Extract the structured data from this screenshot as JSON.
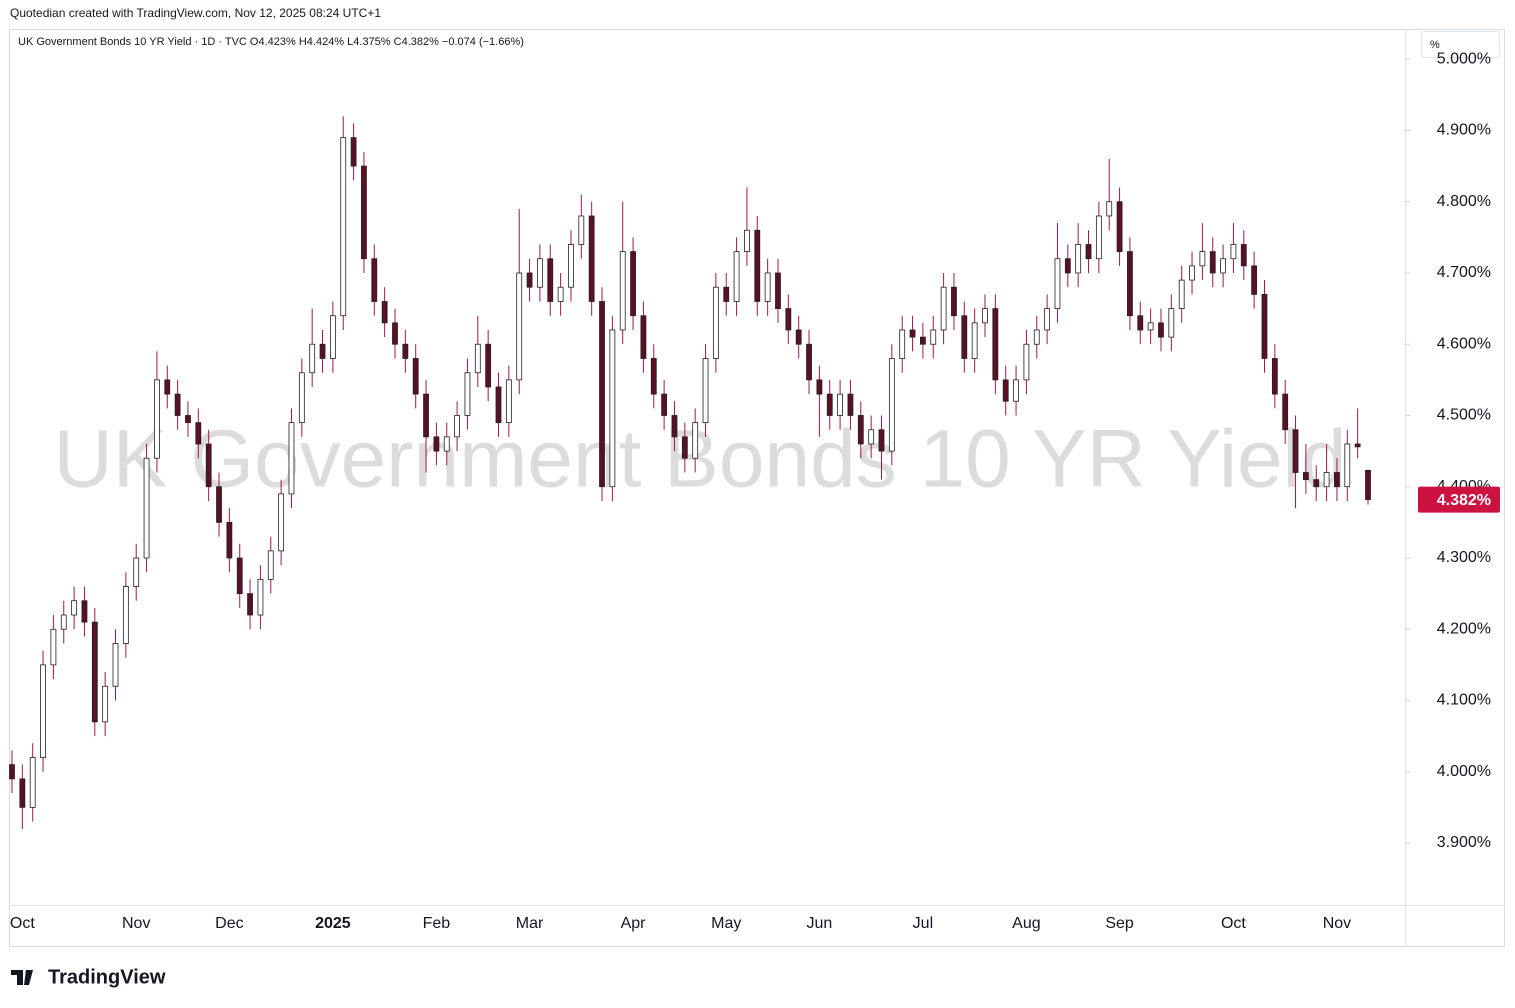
{
  "header": {
    "credit": "Quotedian created with TradingView.com, Nov 12, 2025 08:24 UTC+1",
    "scale_button": "%"
  },
  "footer": {
    "brand": "TradingView"
  },
  "chart_data": {
    "type": "candlestick",
    "title": "UK Government Bonds 10 YR Yield · 1D · TVC  O4.423%  H4.424%  L4.375%  C4.382%  −0.074 (−1.66%)",
    "watermark": "UK Government Bonds 10 YR Yield",
    "categories": [
      null,
      "Oct",
      null,
      null,
      null,
      null,
      null,
      null,
      null,
      null,
      null,
      null,
      "Nov",
      null,
      null,
      null,
      null,
      null,
      null,
      null,
      null,
      "Dec",
      null,
      null,
      null,
      null,
      null,
      null,
      null,
      null,
      null,
      "2025",
      null,
      null,
      null,
      null,
      null,
      null,
      null,
      null,
      null,
      "Feb",
      null,
      null,
      null,
      null,
      null,
      null,
      null,
      null,
      "Mar",
      null,
      null,
      null,
      null,
      null,
      null,
      null,
      null,
      null,
      "Apr",
      null,
      null,
      null,
      null,
      null,
      null,
      null,
      null,
      "May",
      null,
      null,
      null,
      null,
      null,
      null,
      null,
      null,
      "Jun",
      null,
      null,
      null,
      null,
      null,
      null,
      null,
      null,
      null,
      "Jul",
      null,
      null,
      null,
      null,
      null,
      null,
      null,
      null,
      null,
      "Aug",
      null,
      null,
      null,
      null,
      null,
      null,
      null,
      null,
      "Sep",
      null,
      null,
      null,
      null,
      null,
      null,
      null,
      null,
      null,
      null,
      "Oct",
      null,
      null,
      null,
      null,
      null,
      null,
      null,
      null,
      null,
      "Nov",
      null,
      null,
      null
    ],
    "ohlc": [
      [
        4.01,
        4.03,
        3.97,
        3.99
      ],
      [
        3.99,
        4.01,
        3.92,
        3.95
      ],
      [
        3.95,
        4.04,
        3.93,
        4.02
      ],
      [
        4.02,
        4.17,
        4.0,
        4.15
      ],
      [
        4.15,
        4.22,
        4.13,
        4.2
      ],
      [
        4.2,
        4.24,
        4.18,
        4.22
      ],
      [
        4.22,
        4.26,
        4.2,
        4.24
      ],
      [
        4.24,
        4.26,
        4.19,
        4.21
      ],
      [
        4.21,
        4.23,
        4.05,
        4.07
      ],
      [
        4.07,
        4.14,
        4.05,
        4.12
      ],
      [
        4.12,
        4.2,
        4.1,
        4.18
      ],
      [
        4.18,
        4.28,
        4.16,
        4.26
      ],
      [
        4.26,
        4.32,
        4.24,
        4.3
      ],
      [
        4.3,
        4.46,
        4.28,
        4.44
      ],
      [
        4.44,
        4.59,
        4.42,
        4.55
      ],
      [
        4.55,
        4.57,
        4.51,
        4.53
      ],
      [
        4.53,
        4.55,
        4.48,
        4.5
      ],
      [
        4.5,
        4.52,
        4.47,
        4.49
      ],
      [
        4.49,
        4.51,
        4.44,
        4.46
      ],
      [
        4.46,
        4.48,
        4.38,
        4.4
      ],
      [
        4.4,
        4.42,
        4.33,
        4.35
      ],
      [
        4.35,
        4.37,
        4.28,
        4.3
      ],
      [
        4.3,
        4.32,
        4.23,
        4.25
      ],
      [
        4.25,
        4.27,
        4.2,
        4.22
      ],
      [
        4.22,
        4.29,
        4.2,
        4.27
      ],
      [
        4.27,
        4.33,
        4.25,
        4.31
      ],
      [
        4.31,
        4.41,
        4.29,
        4.39
      ],
      [
        4.39,
        4.51,
        4.37,
        4.49
      ],
      [
        4.49,
        4.58,
        4.47,
        4.56
      ],
      [
        4.56,
        4.65,
        4.54,
        4.6
      ],
      [
        4.6,
        4.62,
        4.56,
        4.58
      ],
      [
        4.58,
        4.66,
        4.56,
        4.64
      ],
      [
        4.64,
        4.92,
        4.62,
        4.89
      ],
      [
        4.89,
        4.91,
        4.83,
        4.85
      ],
      [
        4.85,
        4.87,
        4.7,
        4.72
      ],
      [
        4.72,
        4.74,
        4.64,
        4.66
      ],
      [
        4.66,
        4.68,
        4.61,
        4.63
      ],
      [
        4.63,
        4.65,
        4.58,
        4.6
      ],
      [
        4.6,
        4.62,
        4.56,
        4.58
      ],
      [
        4.58,
        4.6,
        4.51,
        4.53
      ],
      [
        4.53,
        4.55,
        4.42,
        4.47
      ],
      [
        4.47,
        4.49,
        4.43,
        4.45
      ],
      [
        4.45,
        4.49,
        4.43,
        4.47
      ],
      [
        4.47,
        4.52,
        4.45,
        4.5
      ],
      [
        4.5,
        4.58,
        4.48,
        4.56
      ],
      [
        4.56,
        4.64,
        4.54,
        4.6
      ],
      [
        4.6,
        4.62,
        4.52,
        4.54
      ],
      [
        4.54,
        4.56,
        4.47,
        4.49
      ],
      [
        4.49,
        4.57,
        4.47,
        4.55
      ],
      [
        4.55,
        4.79,
        4.53,
        4.7
      ],
      [
        4.7,
        4.72,
        4.66,
        4.68
      ],
      [
        4.68,
        4.74,
        4.66,
        4.72
      ],
      [
        4.72,
        4.74,
        4.64,
        4.66
      ],
      [
        4.66,
        4.7,
        4.64,
        4.68
      ],
      [
        4.68,
        4.76,
        4.66,
        4.74
      ],
      [
        4.74,
        4.81,
        4.72,
        4.78
      ],
      [
        4.78,
        4.8,
        4.64,
        4.66
      ],
      [
        4.66,
        4.68,
        4.38,
        4.4
      ],
      [
        4.4,
        4.64,
        4.38,
        4.62
      ],
      [
        4.62,
        4.8,
        4.6,
        4.73
      ],
      [
        4.73,
        4.75,
        4.62,
        4.64
      ],
      [
        4.64,
        4.66,
        4.56,
        4.58
      ],
      [
        4.58,
        4.6,
        4.51,
        4.53
      ],
      [
        4.53,
        4.55,
        4.48,
        4.5
      ],
      [
        4.5,
        4.52,
        4.45,
        4.47
      ],
      [
        4.47,
        4.49,
        4.42,
        4.44
      ],
      [
        4.44,
        4.51,
        4.42,
        4.49
      ],
      [
        4.49,
        4.6,
        4.47,
        4.58
      ],
      [
        4.58,
        4.7,
        4.56,
        4.68
      ],
      [
        4.68,
        4.7,
        4.64,
        4.66
      ],
      [
        4.66,
        4.75,
        4.64,
        4.73
      ],
      [
        4.73,
        4.82,
        4.71,
        4.76
      ],
      [
        4.76,
        4.78,
        4.64,
        4.66
      ],
      [
        4.66,
        4.72,
        4.64,
        4.7
      ],
      [
        4.7,
        4.72,
        4.63,
        4.65
      ],
      [
        4.65,
        4.67,
        4.6,
        4.62
      ],
      [
        4.62,
        4.64,
        4.58,
        4.6
      ],
      [
        4.6,
        4.62,
        4.53,
        4.55
      ],
      [
        4.55,
        4.57,
        4.47,
        4.53
      ],
      [
        4.53,
        4.55,
        4.48,
        4.5
      ],
      [
        4.5,
        4.55,
        4.48,
        4.53
      ],
      [
        4.53,
        4.55,
        4.48,
        4.5
      ],
      [
        4.5,
        4.52,
        4.44,
        4.46
      ],
      [
        4.46,
        4.5,
        4.44,
        4.48
      ],
      [
        4.48,
        4.5,
        4.41,
        4.45
      ],
      [
        4.45,
        4.6,
        4.43,
        4.58
      ],
      [
        4.58,
        4.64,
        4.56,
        4.62
      ],
      [
        4.62,
        4.64,
        4.59,
        4.61
      ],
      [
        4.61,
        4.63,
        4.58,
        4.6
      ],
      [
        4.6,
        4.64,
        4.58,
        4.62
      ],
      [
        4.62,
        4.7,
        4.6,
        4.68
      ],
      [
        4.68,
        4.7,
        4.62,
        4.64
      ],
      [
        4.64,
        4.66,
        4.56,
        4.58
      ],
      [
        4.58,
        4.65,
        4.56,
        4.63
      ],
      [
        4.63,
        4.67,
        4.61,
        4.65
      ],
      [
        4.65,
        4.67,
        4.53,
        4.55
      ],
      [
        4.55,
        4.57,
        4.5,
        4.52
      ],
      [
        4.52,
        4.57,
        4.5,
        4.55
      ],
      [
        4.55,
        4.62,
        4.53,
        4.6
      ],
      [
        4.6,
        4.64,
        4.58,
        4.62
      ],
      [
        4.62,
        4.67,
        4.6,
        4.65
      ],
      [
        4.65,
        4.77,
        4.63,
        4.72
      ],
      [
        4.72,
        4.74,
        4.68,
        4.7
      ],
      [
        4.7,
        4.77,
        4.68,
        4.74
      ],
      [
        4.74,
        4.76,
        4.7,
        4.72
      ],
      [
        4.72,
        4.8,
        4.7,
        4.78
      ],
      [
        4.78,
        4.86,
        4.76,
        4.8
      ],
      [
        4.8,
        4.82,
        4.71,
        4.73
      ],
      [
        4.73,
        4.75,
        4.62,
        4.64
      ],
      [
        4.64,
        4.66,
        4.6,
        4.62
      ],
      [
        4.62,
        4.65,
        4.6,
        4.63
      ],
      [
        4.63,
        4.65,
        4.59,
        4.61
      ],
      [
        4.61,
        4.67,
        4.59,
        4.65
      ],
      [
        4.65,
        4.71,
        4.63,
        4.69
      ],
      [
        4.69,
        4.73,
        4.67,
        4.71
      ],
      [
        4.71,
        4.77,
        4.69,
        4.73
      ],
      [
        4.73,
        4.75,
        4.68,
        4.7
      ],
      [
        4.7,
        4.74,
        4.68,
        4.72
      ],
      [
        4.72,
        4.77,
        4.7,
        4.74
      ],
      [
        4.74,
        4.76,
        4.69,
        4.71
      ],
      [
        4.71,
        4.73,
        4.65,
        4.67
      ],
      [
        4.67,
        4.69,
        4.56,
        4.58
      ],
      [
        4.58,
        4.6,
        4.51,
        4.53
      ],
      [
        4.53,
        4.55,
        4.46,
        4.48
      ],
      [
        4.48,
        4.5,
        4.37,
        4.42
      ],
      [
        4.42,
        4.46,
        4.39,
        4.41
      ],
      [
        4.41,
        4.43,
        4.38,
        4.4
      ],
      [
        4.4,
        4.46,
        4.38,
        4.42
      ],
      [
        4.42,
        4.44,
        4.38,
        4.4
      ],
      [
        4.4,
        4.48,
        4.38,
        4.46
      ],
      [
        4.46,
        4.51,
        4.44,
        4.456
      ],
      [
        4.423,
        4.424,
        4.375,
        4.382
      ]
    ],
    "up_color": "#ffffff",
    "down_color": "#5a1027",
    "wick_color": "#a3164c",
    "border_color": "#222222",
    "ylim": [
      3.813,
      5.041
    ],
    "yticks": [
      {
        "value": 3.9,
        "label": "3.900%"
      },
      {
        "value": 4.0,
        "label": "4.000%"
      },
      {
        "value": 4.1,
        "label": "4.100%"
      },
      {
        "value": 4.2,
        "label": "4.200%"
      },
      {
        "value": 4.3,
        "label": "4.300%"
      },
      {
        "value": 4.4,
        "label": "4.400%"
      },
      {
        "value": 4.5,
        "label": "4.500%"
      },
      {
        "value": 4.6,
        "label": "4.600%"
      },
      {
        "value": 4.7,
        "label": "4.700%"
      },
      {
        "value": 4.8,
        "label": "4.800%"
      },
      {
        "value": 4.9,
        "label": "4.900%"
      },
      {
        "value": 5.0,
        "label": "5.000%"
      }
    ],
    "last_price": {
      "value": 4.382,
      "label": "4.382%"
    },
    "last_price_color": "#cc1241",
    "grid": false
  }
}
